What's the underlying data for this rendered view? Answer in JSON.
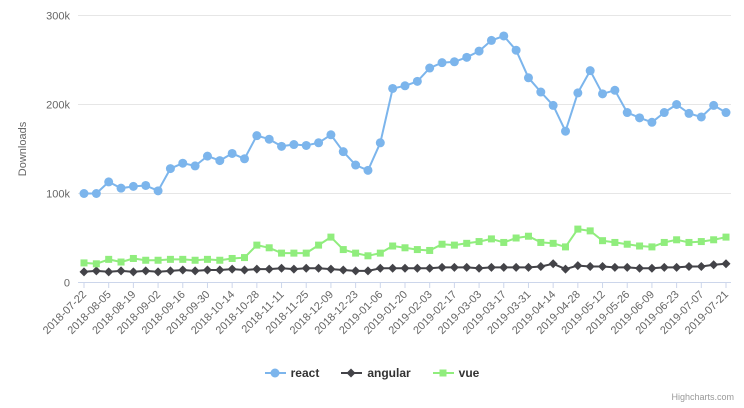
{
  "chart_data": {
    "type": "line",
    "title": "",
    "xlabel": "",
    "ylabel": "Downloads",
    "y_unit": "thousands (k)",
    "ylim": [
      0,
      300
    ],
    "yticks": [
      0,
      100,
      200,
      300
    ],
    "ytick_labels": [
      "0",
      "100k",
      "200k",
      "300k"
    ],
    "grid": true,
    "legend_position": "bottom-center",
    "xtick_every": 2,
    "x": [
      "2018-07-22",
      "2018-07-29",
      "2018-08-05",
      "2018-08-12",
      "2018-08-19",
      "2018-08-26",
      "2018-09-02",
      "2018-09-09",
      "2018-09-16",
      "2018-09-23",
      "2018-09-30",
      "2018-10-07",
      "2018-10-14",
      "2018-10-21",
      "2018-10-28",
      "2018-11-04",
      "2018-11-11",
      "2018-11-18",
      "2018-11-25",
      "2018-12-02",
      "2018-12-09",
      "2018-12-16",
      "2018-12-23",
      "2018-12-30",
      "2019-01-06",
      "2019-01-13",
      "2019-01-20",
      "2019-01-27",
      "2019-02-03",
      "2019-02-10",
      "2019-02-17",
      "2019-02-24",
      "2019-03-03",
      "2019-03-10",
      "2019-03-17",
      "2019-03-24",
      "2019-03-31",
      "2019-04-07",
      "2019-04-14",
      "2019-04-21",
      "2019-04-28",
      "2019-05-05",
      "2019-05-12",
      "2019-05-19",
      "2019-05-26",
      "2019-06-02",
      "2019-06-09",
      "2019-06-16",
      "2019-06-23",
      "2019-06-30",
      "2019-07-07",
      "2019-07-14",
      "2019-07-21"
    ],
    "series": [
      {
        "name": "react",
        "color": "#7cb5ec",
        "marker": "circle",
        "values": [
          100,
          100,
          113,
          106,
          108,
          109,
          103,
          128,
          134,
          131,
          142,
          137,
          145,
          139,
          165,
          161,
          153,
          155,
          154,
          157,
          166,
          147,
          132,
          126,
          157,
          218,
          221,
          226,
          241,
          247,
          248,
          253,
          260,
          272,
          277,
          261,
          230,
          214,
          199,
          170,
          213,
          238,
          212,
          216,
          191,
          185,
          180,
          191,
          200,
          190,
          186,
          199,
          191
        ]
      },
      {
        "name": "angular",
        "color": "#434348",
        "marker": "diamond",
        "values": [
          12,
          13,
          12,
          13,
          12,
          13,
          12,
          13,
          14,
          13,
          14,
          14,
          15,
          14,
          15,
          15,
          16,
          15,
          16,
          16,
          15,
          14,
          13,
          13,
          16,
          16,
          16,
          16,
          16,
          17,
          17,
          17,
          16,
          17,
          17,
          17,
          17,
          18,
          21,
          15,
          19,
          18,
          18,
          17,
          17,
          16,
          16,
          17,
          17,
          18,
          18,
          20,
          21
        ]
      },
      {
        "name": "vue",
        "color": "#90ed7d",
        "marker": "square",
        "values": [
          22,
          21,
          26,
          23,
          27,
          25,
          25,
          26,
          26,
          25,
          26,
          25,
          27,
          28,
          42,
          39,
          33,
          33,
          33,
          42,
          51,
          37,
          33,
          30,
          33,
          41,
          39,
          37,
          36,
          43,
          42,
          44,
          46,
          49,
          45,
          50,
          52,
          45,
          44,
          40,
          60,
          58,
          47,
          45,
          43,
          41,
          40,
          45,
          48,
          45,
          46,
          48,
          51
        ]
      }
    ]
  },
  "credits": "Highcharts.com",
  "colors": {
    "background": "#ffffff",
    "grid_line": "#e6e6e6",
    "axis_line": "#ccd6eb",
    "axis_label": "#666666",
    "legend_text": "#333333",
    "credits_text": "#999999"
  }
}
